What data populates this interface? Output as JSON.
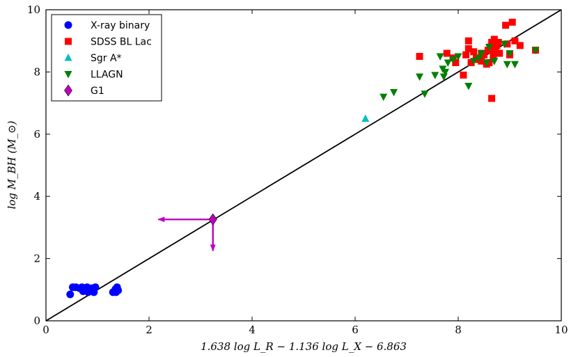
{
  "chart_data": {
    "type": "scatter",
    "xlabel": "1.638 log L_R − 1.136 log L_X − 6.863",
    "ylabel": "log M_BH (M_⊙)",
    "xlim": [
      0,
      10
    ],
    "ylim": [
      0,
      10
    ],
    "xticks": [
      0,
      2,
      4,
      6,
      8,
      10
    ],
    "yticks": [
      0,
      2,
      4,
      6,
      8,
      10
    ],
    "grid": false,
    "legend_position": "top-left",
    "fit_line": {
      "x": [
        0,
        10
      ],
      "y": [
        0,
        10
      ],
      "color": "#000000"
    },
    "series": [
      {
        "name": "X-ray binary",
        "marker": "circle",
        "color": "#0000ff",
        "points": [
          [
            0.47,
            0.85
          ],
          [
            0.52,
            1.08
          ],
          [
            0.58,
            1.08
          ],
          [
            0.65,
            1.05
          ],
          [
            0.7,
            1.08
          ],
          [
            0.72,
            0.95
          ],
          [
            0.76,
            1.02
          ],
          [
            0.8,
            1.08
          ],
          [
            0.82,
            0.92
          ],
          [
            0.86,
            1.0
          ],
          [
            0.9,
            1.05
          ],
          [
            0.93,
            0.92
          ],
          [
            0.96,
            1.08
          ],
          [
            1.3,
            0.92
          ],
          [
            1.35,
            1.02
          ],
          [
            1.38,
            1.08
          ],
          [
            1.4,
            0.98
          ],
          [
            1.36,
            0.92
          ]
        ]
      },
      {
        "name": "SDSS BL Lac",
        "marker": "square",
        "color": "#ff0000",
        "points": [
          [
            7.25,
            8.5
          ],
          [
            7.78,
            8.6
          ],
          [
            7.9,
            8.45
          ],
          [
            7.95,
            8.3
          ],
          [
            8.1,
            7.9
          ],
          [
            8.15,
            8.55
          ],
          [
            8.2,
            8.75
          ],
          [
            8.2,
            9.0
          ],
          [
            8.25,
            8.3
          ],
          [
            8.3,
            8.65
          ],
          [
            8.38,
            8.4
          ],
          [
            8.45,
            8.35
          ],
          [
            8.5,
            8.55
          ],
          [
            8.55,
            8.25
          ],
          [
            8.58,
            8.7
          ],
          [
            8.62,
            8.8
          ],
          [
            8.65,
            8.95
          ],
          [
            8.68,
            8.5
          ],
          [
            8.7,
            9.05
          ],
          [
            8.72,
            8.65
          ],
          [
            8.75,
            8.85
          ],
          [
            8.78,
            8.95
          ],
          [
            8.8,
            8.6
          ],
          [
            8.92,
            9.5
          ],
          [
            8.95,
            8.9
          ],
          [
            9.0,
            8.55
          ],
          [
            9.05,
            9.6
          ],
          [
            9.1,
            9.0
          ],
          [
            9.2,
            8.85
          ],
          [
            9.5,
            8.7
          ],
          [
            8.65,
            7.15
          ],
          [
            8.6,
            8.3
          ],
          [
            8.45,
            8.6
          ],
          [
            8.35,
            8.45
          ]
        ]
      },
      {
        "name": "Sgr A*",
        "marker": "triangle-up",
        "color": "#00bfbf",
        "points": [
          [
            6.2,
            6.5
          ]
        ]
      },
      {
        "name": "LLAGN",
        "marker": "triangle-down",
        "color": "#008000",
        "points": [
          [
            6.55,
            7.2
          ],
          [
            6.75,
            7.35
          ],
          [
            7.25,
            7.85
          ],
          [
            7.35,
            7.3
          ],
          [
            7.55,
            7.9
          ],
          [
            7.65,
            8.5
          ],
          [
            7.7,
            8.1
          ],
          [
            7.72,
            7.85
          ],
          [
            7.75,
            8.0
          ],
          [
            7.8,
            8.3
          ],
          [
            7.9,
            8.4
          ],
          [
            8.0,
            8.5
          ],
          [
            8.2,
            7.55
          ],
          [
            8.3,
            8.35
          ],
          [
            8.45,
            8.6
          ],
          [
            8.55,
            8.3
          ],
          [
            8.6,
            8.8
          ],
          [
            8.7,
            8.35
          ],
          [
            8.9,
            8.9
          ],
          [
            8.95,
            8.25
          ],
          [
            9.0,
            8.6
          ],
          [
            9.1,
            8.25
          ],
          [
            9.5,
            8.7
          ],
          [
            8.4,
            8.45
          ]
        ]
      },
      {
        "name": "G1",
        "marker": "diamond",
        "color": "#bf00bf",
        "points": [
          [
            3.24,
            3.26
          ]
        ]
      }
    ],
    "limit_arrows": [
      {
        "from": [
          3.24,
          3.26
        ],
        "to": [
          2.18,
          3.26
        ],
        "color": "#bf00bf"
      },
      {
        "from": [
          3.24,
          3.26
        ],
        "to": [
          3.24,
          2.25
        ],
        "color": "#bf00bf"
      }
    ]
  }
}
